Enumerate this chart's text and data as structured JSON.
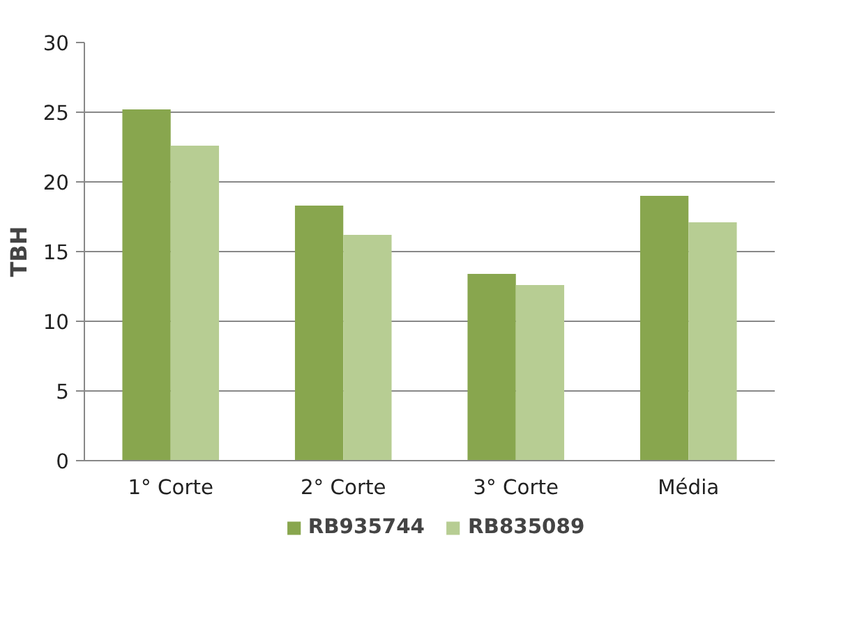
{
  "chart_data": {
    "type": "bar",
    "ylabel": "TBH",
    "categories": [
      "1° Corte",
      "2° Corte",
      "3° Corte",
      "Média"
    ],
    "series": [
      {
        "name": "RB935744",
        "color": "#88a64e",
        "values": [
          25.2,
          18.3,
          13.4,
          19.0
        ]
      },
      {
        "name": "RB835089",
        "color": "#b7cd93",
        "values": [
          22.6,
          16.2,
          12.6,
          17.1
        ]
      }
    ],
    "ylim": [
      0,
      30
    ],
    "yticks": [
      0,
      5,
      10,
      15,
      20,
      25,
      30
    ],
    "grid": "y",
    "legend": "bottom"
  }
}
